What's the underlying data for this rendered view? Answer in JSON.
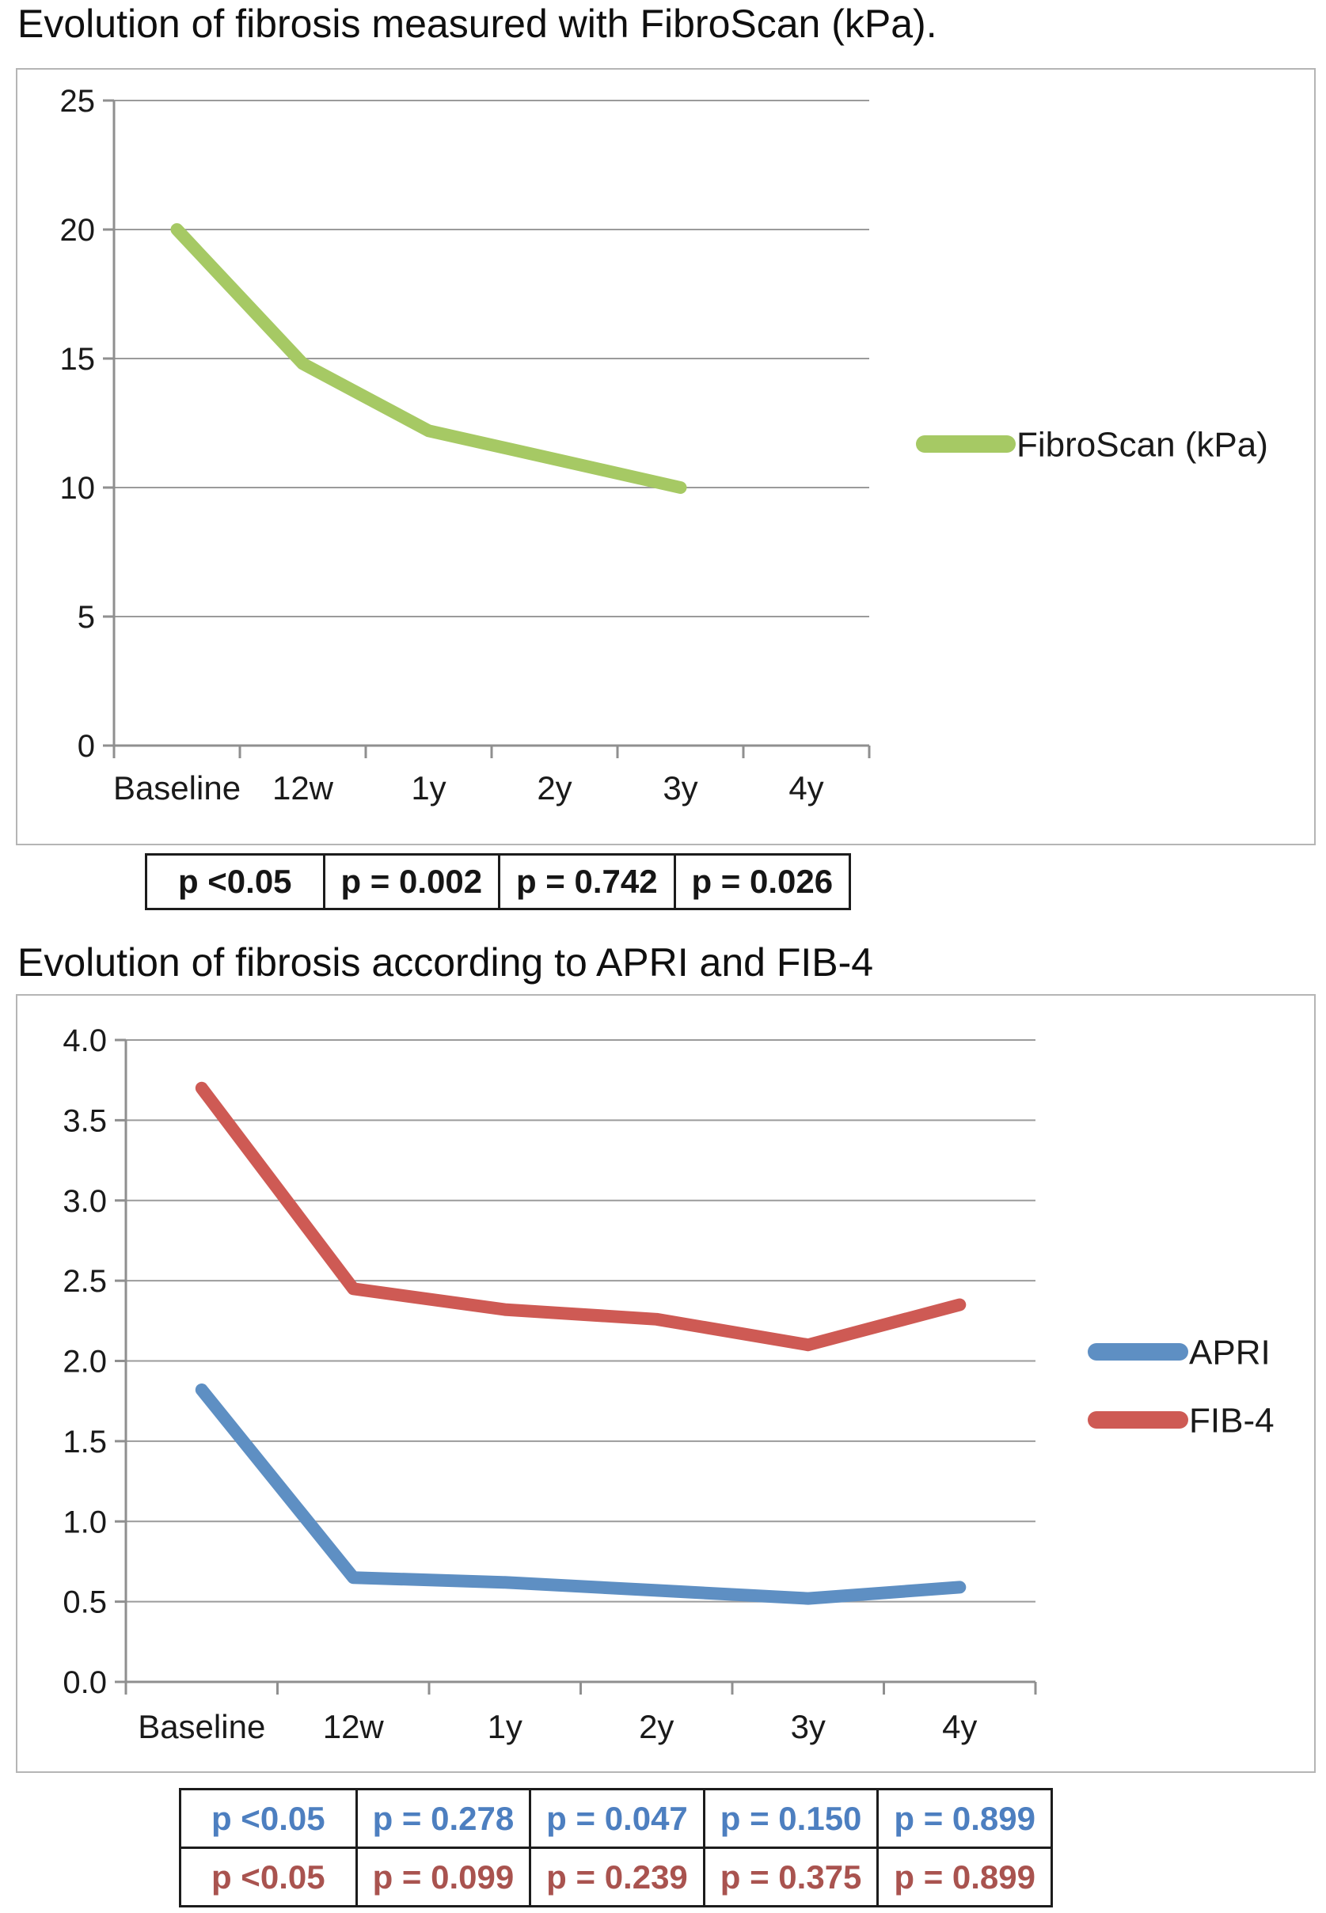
{
  "colors": {
    "grid": "#9b9b9b",
    "axis": "#8f8f8f",
    "chart_border": "#b5b5b5",
    "text": "#1a1a1a",
    "table_border": "#1c1c1c"
  },
  "chart_data": [
    {
      "type": "line",
      "title": "Evolution of fibrosis measured with FibroScan (kPa).",
      "categories": [
        "Baseline",
        "12w",
        "1y",
        "2y",
        "3y",
        "4y"
      ],
      "series": [
        {
          "name": "FibroScan (kPa)",
          "color": "#a6c964",
          "values": [
            20,
            14.8,
            12.2,
            11.1,
            10,
            null
          ]
        }
      ],
      "ylim": [
        0,
        25
      ],
      "yticks": [
        0,
        5,
        10,
        15,
        20,
        25
      ],
      "ytick_labels": [
        "0",
        "5",
        "10",
        "15",
        "20",
        "25"
      ],
      "xlabel": "",
      "ylabel": "",
      "grid": true,
      "legend_position": "right"
    },
    {
      "type": "line",
      "title": "Evolution of fibrosis according to APRI and FIB-4",
      "categories": [
        "Baseline",
        "12w",
        "1y",
        "2y",
        "3y",
        "4y"
      ],
      "series": [
        {
          "name": "APRI",
          "color": "#5e8fc3",
          "values": [
            1.82,
            0.65,
            0.62,
            0.57,
            0.52,
            0.59
          ]
        },
        {
          "name": "FIB-4",
          "color": "#ce5a54",
          "values": [
            3.7,
            2.45,
            2.32,
            2.26,
            2.1,
            2.35
          ]
        }
      ],
      "ylim": [
        0,
        4
      ],
      "yticks": [
        0,
        0.5,
        1,
        1.5,
        2,
        2.5,
        3,
        3.5,
        4
      ],
      "ytick_labels": [
        "0.0",
        "0.5",
        "1.0",
        "1.5",
        "2.0",
        "2.5",
        "3.0",
        "3.5",
        "4.0"
      ],
      "xlabel": "",
      "ylabel": "",
      "grid": true,
      "legend_position": "right"
    }
  ],
  "tables": {
    "fibroscan": {
      "rows": [
        {
          "color": "#161616",
          "cells": [
            "p <0.05",
            "p = 0.002",
            "p = 0.742",
            "p = 0.026"
          ]
        }
      ]
    },
    "apri_fib4": {
      "rows": [
        {
          "color": "#4d7fc0",
          "cells": [
            "p <0.05",
            "p = 0.278",
            "p = 0.047",
            "p = 0.150",
            "p = 0.899"
          ]
        },
        {
          "color": "#a9534f",
          "cells": [
            "p <0.05",
            "p = 0.099",
            "p = 0.239",
            "p = 0.375",
            "p = 0.899"
          ]
        }
      ]
    }
  }
}
